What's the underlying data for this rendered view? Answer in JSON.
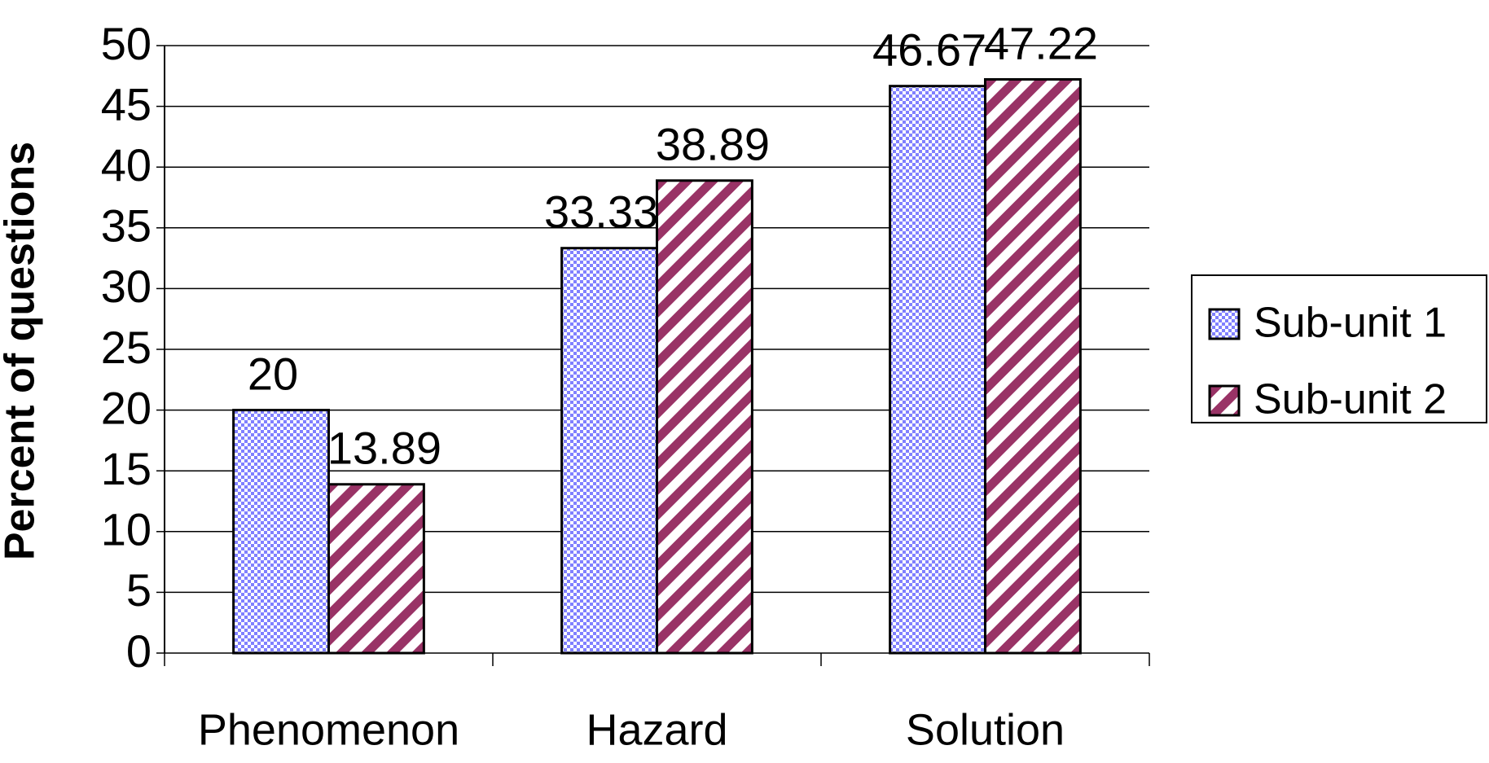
{
  "chart_data": {
    "type": "bar",
    "y_label": "Percent of questions",
    "categories": [
      "Phenomenon",
      "Hazard",
      "Solution"
    ],
    "series": [
      {
        "name": "Sub-unit 1",
        "color": "#8080ff",
        "pattern": "checker",
        "values": [
          20,
          33.33,
          46.67
        ]
      },
      {
        "name": "Sub-unit 2",
        "color": "#993366",
        "pattern": "diagonal",
        "values": [
          13.89,
          38.89,
          47.22
        ]
      }
    ],
    "ylim": [
      0,
      50
    ],
    "yticks": [
      0,
      5,
      10,
      15,
      20,
      25,
      30,
      35,
      40,
      45,
      50
    ],
    "grid": true,
    "legend": "right"
  }
}
